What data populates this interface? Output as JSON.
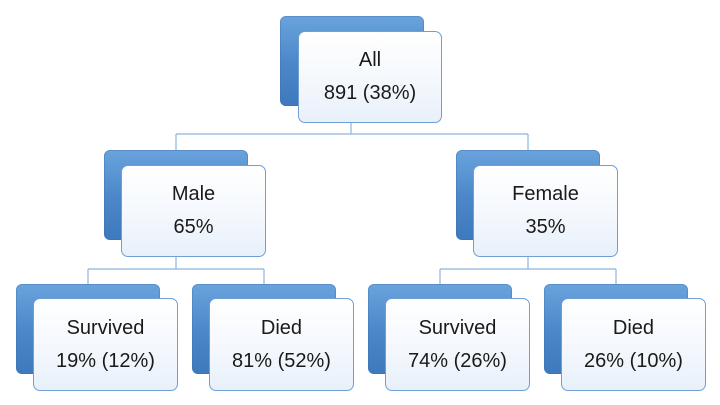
{
  "colors": {
    "back_box": "#4a86c8",
    "front_border": "#6f9fd4",
    "connector": "#8fb3dc",
    "text": "#1a1a1a"
  },
  "tree": {
    "root": {
      "label": "All",
      "value": "891 (38%)"
    },
    "male": {
      "label": "Male",
      "value": "65%"
    },
    "female": {
      "label": "Female",
      "value": "35%"
    },
    "male_survived": {
      "label": "Survived",
      "value": "19% (12%)"
    },
    "male_died": {
      "label": "Died",
      "value": "81% (52%)"
    },
    "female_survived": {
      "label": "Survived",
      "value": "74% (26%)"
    },
    "female_died": {
      "label": "Died",
      "value": "26% (10%)"
    }
  }
}
